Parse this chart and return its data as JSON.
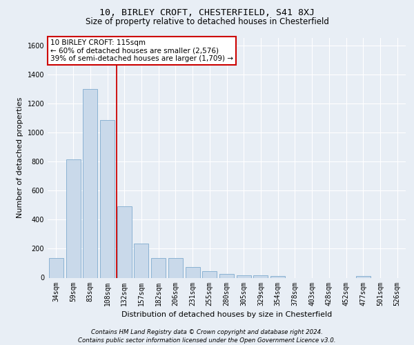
{
  "title1": "10, BIRLEY CROFT, CHESTERFIELD, S41 8XJ",
  "title2": "Size of property relative to detached houses in Chesterfield",
  "xlabel": "Distribution of detached houses by size in Chesterfield",
  "ylabel": "Number of detached properties",
  "categories": [
    "34sqm",
    "59sqm",
    "83sqm",
    "108sqm",
    "132sqm",
    "157sqm",
    "182sqm",
    "206sqm",
    "231sqm",
    "255sqm",
    "280sqm",
    "305sqm",
    "329sqm",
    "354sqm",
    "378sqm",
    "403sqm",
    "428sqm",
    "452sqm",
    "477sqm",
    "501sqm",
    "526sqm"
  ],
  "values": [
    135,
    815,
    1300,
    1085,
    490,
    235,
    135,
    135,
    75,
    45,
    25,
    15,
    15,
    10,
    0,
    0,
    0,
    0,
    10,
    0,
    0
  ],
  "bar_color": "#c9d9ea",
  "bar_edge_color": "#7eaace",
  "vline_x": 3.55,
  "vline_color": "#cc0000",
  "annotation_text": "10 BIRLEY CROFT: 115sqm\n← 60% of detached houses are smaller (2,576)\n39% of semi-detached houses are larger (1,709) →",
  "annotation_box_color": "#ffffff",
  "annotation_box_edge": "#cc0000",
  "ylim": [
    0,
    1650
  ],
  "yticks": [
    0,
    200,
    400,
    600,
    800,
    1000,
    1200,
    1400,
    1600
  ],
  "footer1": "Contains HM Land Registry data © Crown copyright and database right 2024.",
  "footer2": "Contains public sector information licensed under the Open Government Licence v3.0.",
  "bg_color": "#e8eef5",
  "plot_bg_color": "#e8eef5",
  "title1_fontsize": 9.5,
  "title2_fontsize": 8.5,
  "xlabel_fontsize": 8,
  "ylabel_fontsize": 8,
  "tick_fontsize": 7
}
